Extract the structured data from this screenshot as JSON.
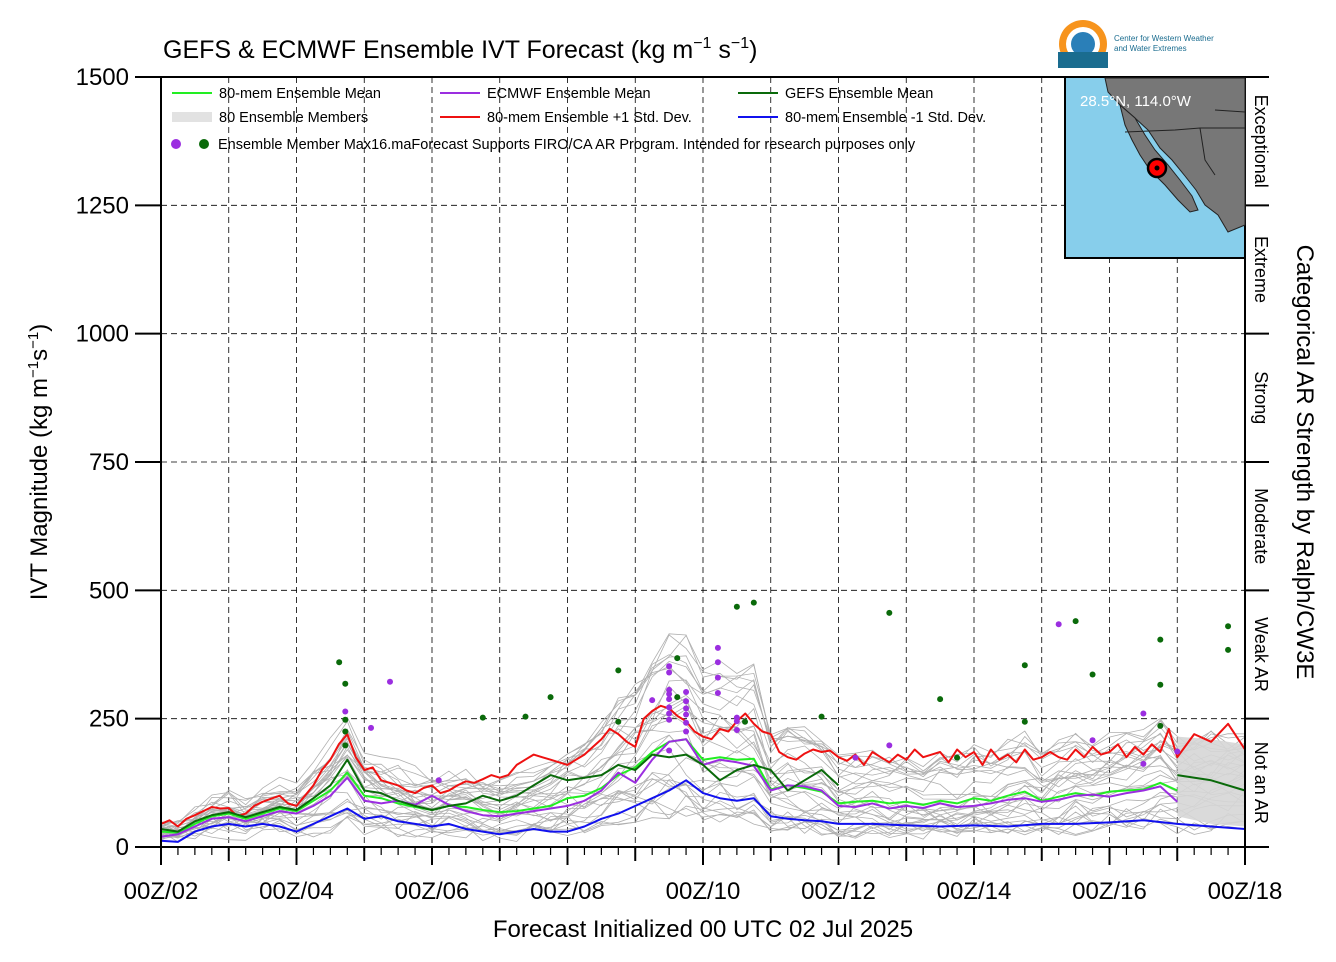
{
  "chart_data": {
    "type": "line",
    "title": "GEFS & ECMWF Ensemble IVT Forecast (kg m",
    "title_units_sup1": "−1",
    "title_units_mid": " s",
    "title_units_sup2": "−1",
    "title_units_end": ")",
    "xlabel": "Forecast Initialized 00 UTC 02 Jul 2025",
    "ylabel_main": "IVT Magnitude (kg m",
    "ylabel_sup1": "−1",
    "ylabel_mid": "s",
    "ylabel_sup2": "−1",
    "ylabel_end": ")",
    "right_axis_label": "Categorical AR Strength by Ralph/CW3E",
    "x_range_days": [
      2,
      18
    ],
    "ylim": [
      0,
      1500
    ],
    "y_ticks": [
      0,
      250,
      500,
      750,
      1000,
      1250,
      1500
    ],
    "y_tick_labels": [
      "0",
      "250",
      "500",
      "750",
      "1000",
      "1250",
      "1500"
    ],
    "x_ticks": [
      2,
      4,
      6,
      8,
      10,
      12,
      14,
      16,
      18
    ],
    "x_tick_labels": [
      "00Z/02",
      "00Z/04",
      "00Z/06",
      "00Z/08",
      "00Z/10",
      "00Z/12",
      "00Z/14",
      "00Z/16",
      "00Z/18"
    ],
    "grid": true,
    "categories": [
      {
        "label": "Not an AR",
        "min": 0,
        "max": 250
      },
      {
        "label": "Weak AR",
        "min": 250,
        "max": 500
      },
      {
        "label": "Moderate",
        "min": 500,
        "max": 750
      },
      {
        "label": "Strong",
        "min": 750,
        "max": 1000
      },
      {
        "label": "Extreme",
        "min": 1000,
        "max": 1250
      },
      {
        "label": "Exceptional",
        "min": 1250,
        "max": 1500
      }
    ],
    "legend": [
      {
        "label": "80-mem Ensemble Mean",
        "color": "#22ee22",
        "kind": "line"
      },
      {
        "label": "ECMWF Ensemble Mean",
        "color": "#9b2ee0",
        "kind": "line"
      },
      {
        "label": "GEFS Ensemble Mean",
        "color": "#0a6a0a",
        "kind": "line"
      },
      {
        "label": "80 Ensemble Members",
        "color": "#b0b0b0",
        "kind": "members"
      },
      {
        "label": "80-mem Ensemble +1 Std. Dev.",
        "color": "#ee1111",
        "kind": "line"
      },
      {
        "label": "80-mem Ensemble -1 Std. Dev.",
        "color": "#1111ee",
        "kind": "line"
      }
    ],
    "legend_dots_label": "Ensemble Member Max16.maForecast Supports FIRO/CA AR Program. Intended for research purposes only",
    "map_label": "28.5°N, 114.0°W",
    "series": [
      {
        "name": "80-mem Ensemble +1 Std. Dev.",
        "color": "#ee1111",
        "x": [
          2.0,
          2.125,
          2.25,
          2.375,
          2.5,
          2.625,
          2.75,
          2.875,
          3.0,
          3.125,
          3.25,
          3.375,
          3.5,
          3.625,
          3.75,
          3.875,
          4.0,
          4.125,
          4.25,
          4.375,
          4.5,
          4.625,
          4.75,
          4.875,
          5.0,
          5.125,
          5.25,
          5.375,
          5.5,
          5.625,
          5.75,
          5.875,
          6.0,
          6.125,
          6.25,
          6.375,
          6.5,
          6.625,
          6.75,
          6.875,
          7.0,
          7.125,
          7.25,
          7.375,
          7.5,
          7.625,
          7.75,
          7.875,
          8.0,
          8.125,
          8.25,
          8.375,
          8.5,
          8.625,
          8.75,
          8.875,
          9.0,
          9.125,
          9.25,
          9.375,
          9.5,
          9.625,
          9.75,
          9.875,
          10.0,
          10.125,
          10.25,
          10.375,
          10.5,
          10.625,
          10.75,
          10.875,
          11.0,
          11.125,
          11.25,
          11.375,
          11.5,
          11.625,
          11.75,
          11.875,
          12.0,
          12.125,
          12.25,
          12.375,
          12.5,
          12.625,
          12.75,
          12.875,
          13.0,
          13.125,
          13.25,
          13.375,
          13.5,
          13.625,
          13.75,
          13.875,
          14.0,
          14.125,
          14.25,
          14.375,
          14.5,
          14.625,
          14.75,
          14.875,
          15.0,
          15.125,
          15.25,
          15.375,
          15.5,
          15.625,
          15.75,
          15.875,
          16.0,
          16.125,
          16.25,
          16.375,
          16.5,
          16.625,
          16.75,
          16.875,
          17.0,
          17.25,
          17.5,
          17.75,
          18.0
        ],
        "values": [
          45,
          52,
          40,
          55,
          62,
          70,
          78,
          75,
          76,
          60,
          65,
          80,
          88,
          94,
          100,
          85,
          80,
          100,
          120,
          150,
          170,
          200,
          220,
          175,
          150,
          155,
          130,
          125,
          120,
          110,
          105,
          115,
          120,
          105,
          110,
          120,
          128,
          125,
          132,
          140,
          135,
          140,
          160,
          170,
          180,
          175,
          170,
          165,
          160,
          170,
          180,
          195,
          210,
          230,
          220,
          205,
          195,
          250,
          265,
          275,
          270,
          255,
          245,
          225,
          215,
          210,
          230,
          225,
          245,
          260,
          240,
          225,
          220,
          185,
          175,
          170,
          182,
          190,
          185,
          188,
          175,
          168,
          180,
          160,
          185,
          175,
          165,
          180,
          170,
          190,
          175,
          180,
          185,
          165,
          190,
          175,
          185,
          160,
          190,
          170,
          180,
          165,
          190,
          170,
          175,
          185,
          175,
          170,
          190,
          175,
          195,
          180,
          185,
          200,
          175,
          195,
          180,
          200,
          185,
          230,
          175,
          220,
          205,
          240,
          190
        ]
      },
      {
        "name": "80-mem Ensemble -1 Std. Dev.",
        "color": "#1111ee",
        "x": [
          2.0,
          2.25,
          2.5,
          2.75,
          3.0,
          3.25,
          3.5,
          3.75,
          4.0,
          4.25,
          4.5,
          4.75,
          5.0,
          5.25,
          5.5,
          5.75,
          6.0,
          6.25,
          6.5,
          6.75,
          7.0,
          7.25,
          7.5,
          7.75,
          8.0,
          8.25,
          8.5,
          8.75,
          9.0,
          9.25,
          9.5,
          9.75,
          10.0,
          10.25,
          10.5,
          10.75,
          11.0,
          11.25,
          11.5,
          11.75,
          12.0,
          12.5,
          13.0,
          13.5,
          14.0,
          14.5,
          15.0,
          15.5,
          16.0,
          16.5,
          17.0,
          17.5,
          18.0
        ],
        "values": [
          12,
          10,
          30,
          40,
          45,
          40,
          45,
          40,
          30,
          45,
          60,
          75,
          55,
          60,
          50,
          45,
          40,
          45,
          35,
          30,
          25,
          30,
          35,
          30,
          30,
          40,
          55,
          65,
          80,
          95,
          110,
          130,
          105,
          95,
          90,
          95,
          60,
          55,
          52,
          50,
          45,
          45,
          42,
          40,
          42,
          40,
          45,
          45,
          48,
          52,
          45,
          40,
          35
        ]
      },
      {
        "name": "80-mem Ensemble Mean",
        "color": "#22ee22",
        "x": [
          2.0,
          2.25,
          2.5,
          2.75,
          3.0,
          3.25,
          3.5,
          3.75,
          4.0,
          4.25,
          4.5,
          4.75,
          5.0,
          5.25,
          5.5,
          5.75,
          6.0,
          6.25,
          6.5,
          6.75,
          7.0,
          7.25,
          7.5,
          7.75,
          8.0,
          8.25,
          8.5,
          8.75,
          9.0,
          9.25,
          9.5,
          9.75,
          10.0,
          10.25,
          10.5,
          10.75,
          11.0,
          11.25,
          11.5,
          11.75,
          12.0,
          12.25,
          12.5,
          12.75,
          13.0,
          13.25,
          13.5,
          13.75,
          14.0,
          14.25,
          14.5,
          14.75,
          15.0,
          15.25,
          15.5,
          15.75,
          16.0,
          16.25,
          16.5,
          16.75,
          17.0
        ],
        "values": [
          30,
          28,
          45,
          60,
          65,
          55,
          65,
          75,
          70,
          90,
          110,
          145,
          100,
          95,
          85,
          78,
          72,
          80,
          78,
          72,
          68,
          70,
          75,
          80,
          95,
          100,
          115,
          140,
          155,
          185,
          205,
          210,
          170,
          175,
          170,
          172,
          112,
          120,
          115,
          108,
          85,
          88,
          90,
          85,
          88,
          82,
          90,
          85,
          95,
          90,
          100,
          108,
          90,
          98,
          105,
          100,
          108,
          110,
          112,
          125,
          110
        ]
      },
      {
        "name": "ECMWF Ensemble Mean",
        "color": "#9b2ee0",
        "x": [
          2.0,
          2.25,
          2.5,
          2.75,
          3.0,
          3.25,
          3.5,
          3.75,
          4.0,
          4.25,
          4.5,
          4.75,
          5.0,
          5.25,
          5.5,
          5.75,
          6.0,
          6.25,
          6.5,
          6.75,
          7.0,
          7.25,
          7.5,
          7.75,
          8.0,
          8.25,
          8.5,
          8.75,
          9.0,
          9.25,
          9.5,
          9.75,
          10.0,
          10.25,
          10.5,
          10.75,
          11.0,
          11.25,
          11.5,
          11.75,
          12.0,
          12.25,
          12.5,
          12.75,
          13.0,
          13.25,
          13.5,
          13.75,
          14.0,
          14.25,
          14.5,
          14.75,
          15.0,
          15.25,
          15.5,
          15.75,
          16.0,
          16.25,
          16.5,
          16.75,
          17.0
        ],
        "values": [
          20,
          25,
          40,
          55,
          58,
          50,
          60,
          70,
          65,
          80,
          100,
          135,
          90,
          85,
          90,
          82,
          100,
          82,
          70,
          62,
          60,
          65,
          70,
          75,
          80,
          90,
          110,
          145,
          125,
          170,
          205,
          210,
          160,
          170,
          165,
          158,
          110,
          120,
          118,
          110,
          80,
          78,
          85,
          75,
          80,
          76,
          85,
          78,
          80,
          85,
          92,
          95,
          88,
          92,
          100,
          102,
          98,
          105,
          110,
          118,
          88
        ]
      },
      {
        "name": "GEFS Ensemble Mean",
        "color": "#0a6a0a",
        "x": [
          2.0,
          2.25,
          2.5,
          2.75,
          3.0,
          3.25,
          3.5,
          3.75,
          4.0,
          4.25,
          4.5,
          4.75,
          5.0,
          5.25,
          5.5,
          5.75,
          6.0,
          6.25,
          6.5,
          6.75,
          7.0,
          7.25,
          7.5,
          7.75,
          8.0,
          8.25,
          8.5,
          8.75,
          9.0,
          9.25,
          9.5,
          9.75,
          10.0,
          10.25,
          10.5,
          10.75,
          11.0,
          11.25,
          11.5,
          11.75,
          12.0,
          12.5,
          13.0,
          13.5,
          14.0,
          14.5,
          15.0,
          15.5,
          16.0,
          16.5,
          17.0,
          17.5,
          18.0
        ],
        "values": [
          35,
          30,
          50,
          62,
          68,
          58,
          68,
          78,
          72,
          95,
          120,
          170,
          110,
          105,
          90,
          80,
          72,
          80,
          85,
          100,
          90,
          100,
          120,
          140,
          130,
          135,
          140,
          160,
          150,
          180,
          175,
          180,
          160,
          130,
          150,
          160,
          150,
          110,
          130,
          150,
          120,
          null,
          null,
          null,
          null,
          null,
          null,
          null,
          null,
          null,
          140,
          130,
          110
        ]
      }
    ]
  }
}
